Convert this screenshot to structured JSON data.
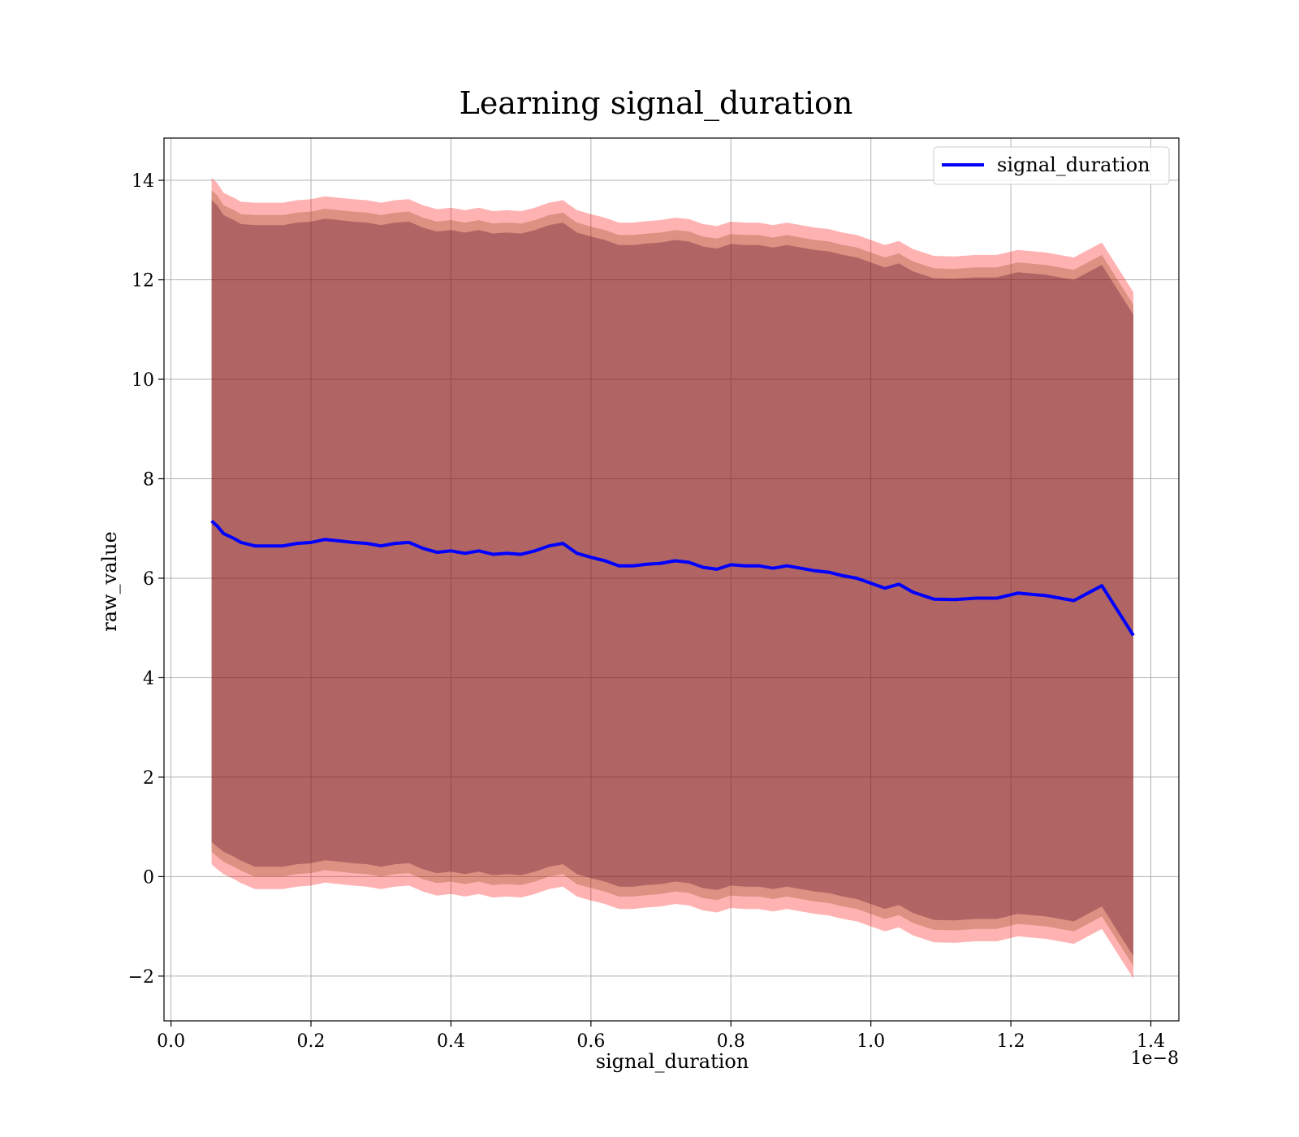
{
  "chart_data": {
    "type": "line",
    "title": "Learning signal_duration",
    "xlabel": "signal_duration",
    "ylabel": "raw_value",
    "x_offset_text": "1e−8",
    "xlim": [
      -0.01,
      1.44
    ],
    "ylim": [
      -2.9,
      14.85
    ],
    "x_scale_factor": 1e-08,
    "x_ticks": [
      0.0,
      0.2,
      0.4,
      0.6,
      0.8,
      1.0,
      1.2,
      1.4
    ],
    "x_tick_labels": [
      "0.0",
      "0.2",
      "0.4",
      "0.6",
      "0.8",
      "1.0",
      "1.2",
      "1.4"
    ],
    "y_ticks": [
      -2,
      0,
      2,
      4,
      6,
      8,
      10,
      12,
      14
    ],
    "y_tick_labels": [
      "−2",
      "0",
      "2",
      "4",
      "6",
      "8",
      "10",
      "12",
      "14"
    ],
    "grid": true,
    "legend": {
      "position": "top-right",
      "entries": [
        "signal_duration"
      ]
    },
    "colors": {
      "line": "#0000ff",
      "outer_band": "#ff0000",
      "middle_band": "#8b4513",
      "inner_band": "#4b0020"
    },
    "series": [
      {
        "name": "signal_duration",
        "x": [
          0.058,
          0.066,
          0.075,
          0.09,
          0.1,
          0.12,
          0.14,
          0.16,
          0.18,
          0.2,
          0.22,
          0.24,
          0.26,
          0.28,
          0.3,
          0.32,
          0.34,
          0.36,
          0.38,
          0.4,
          0.42,
          0.44,
          0.46,
          0.48,
          0.5,
          0.52,
          0.54,
          0.56,
          0.58,
          0.6,
          0.62,
          0.64,
          0.66,
          0.68,
          0.7,
          0.72,
          0.74,
          0.76,
          0.78,
          0.8,
          0.82,
          0.84,
          0.86,
          0.88,
          0.9,
          0.92,
          0.94,
          0.96,
          0.98,
          1.0,
          1.02,
          1.04,
          1.06,
          1.09,
          1.12,
          1.15,
          1.18,
          1.21,
          1.25,
          1.29,
          1.33,
          1.375
        ],
        "y": [
          7.15,
          7.05,
          6.9,
          6.8,
          6.72,
          6.65,
          6.65,
          6.65,
          6.7,
          6.72,
          6.78,
          6.75,
          6.72,
          6.7,
          6.65,
          6.7,
          6.72,
          6.6,
          6.52,
          6.55,
          6.5,
          6.55,
          6.48,
          6.5,
          6.48,
          6.55,
          6.65,
          6.7,
          6.5,
          6.42,
          6.35,
          6.25,
          6.25,
          6.28,
          6.3,
          6.35,
          6.32,
          6.22,
          6.18,
          6.27,
          6.25,
          6.25,
          6.2,
          6.25,
          6.2,
          6.15,
          6.12,
          6.05,
          6.0,
          5.9,
          5.8,
          5.88,
          5.72,
          5.58,
          5.57,
          5.6,
          5.6,
          5.7,
          5.65,
          5.55,
          5.85,
          4.85
        ]
      }
    ],
    "bands": [
      {
        "level": "outer",
        "half_width": [
          6.9,
          6.9,
          6.85,
          6.85,
          6.85,
          6.9,
          6.9,
          6.9,
          6.9,
          6.9,
          6.9,
          6.9,
          6.9,
          6.9,
          6.9,
          6.9,
          6.9,
          6.9,
          6.9,
          6.9,
          6.9,
          6.9,
          6.9,
          6.9,
          6.9,
          6.9,
          6.9,
          6.9,
          6.9,
          6.9,
          6.9,
          6.9,
          6.9,
          6.9,
          6.9,
          6.9,
          6.9,
          6.9,
          6.9,
          6.9,
          6.9,
          6.9,
          6.9,
          6.9,
          6.9,
          6.9,
          6.9,
          6.9,
          6.9,
          6.9,
          6.9,
          6.9,
          6.9,
          6.9,
          6.9,
          6.9,
          6.9,
          6.9,
          6.9,
          6.9,
          6.9,
          6.9
        ]
      },
      {
        "level": "middle",
        "half_width": [
          6.65,
          6.65,
          6.6,
          6.6,
          6.6,
          6.65,
          6.65,
          6.65,
          6.65,
          6.65,
          6.65,
          6.65,
          6.65,
          6.65,
          6.65,
          6.65,
          6.65,
          6.65,
          6.65,
          6.65,
          6.65,
          6.65,
          6.65,
          6.65,
          6.65,
          6.65,
          6.65,
          6.65,
          6.65,
          6.65,
          6.65,
          6.65,
          6.65,
          6.65,
          6.65,
          6.65,
          6.65,
          6.65,
          6.65,
          6.65,
          6.65,
          6.65,
          6.65,
          6.65,
          6.65,
          6.65,
          6.65,
          6.65,
          6.65,
          6.65,
          6.65,
          6.65,
          6.65,
          6.65,
          6.65,
          6.65,
          6.65,
          6.65,
          6.65,
          6.65,
          6.65,
          6.65
        ]
      },
      {
        "level": "inner",
        "half_width": [
          6.45,
          6.45,
          6.4,
          6.4,
          6.4,
          6.45,
          6.45,
          6.45,
          6.45,
          6.45,
          6.45,
          6.45,
          6.45,
          6.45,
          6.45,
          6.45,
          6.45,
          6.45,
          6.45,
          6.45,
          6.45,
          6.45,
          6.45,
          6.45,
          6.45,
          6.45,
          6.45,
          6.45,
          6.45,
          6.45,
          6.45,
          6.45,
          6.45,
          6.45,
          6.45,
          6.45,
          6.45,
          6.45,
          6.45,
          6.45,
          6.45,
          6.45,
          6.45,
          6.45,
          6.45,
          6.45,
          6.45,
          6.45,
          6.45,
          6.45,
          6.45,
          6.45,
          6.45,
          6.45,
          6.45,
          6.45,
          6.45,
          6.45,
          6.45,
          6.45,
          6.45,
          6.45
        ]
      }
    ]
  }
}
